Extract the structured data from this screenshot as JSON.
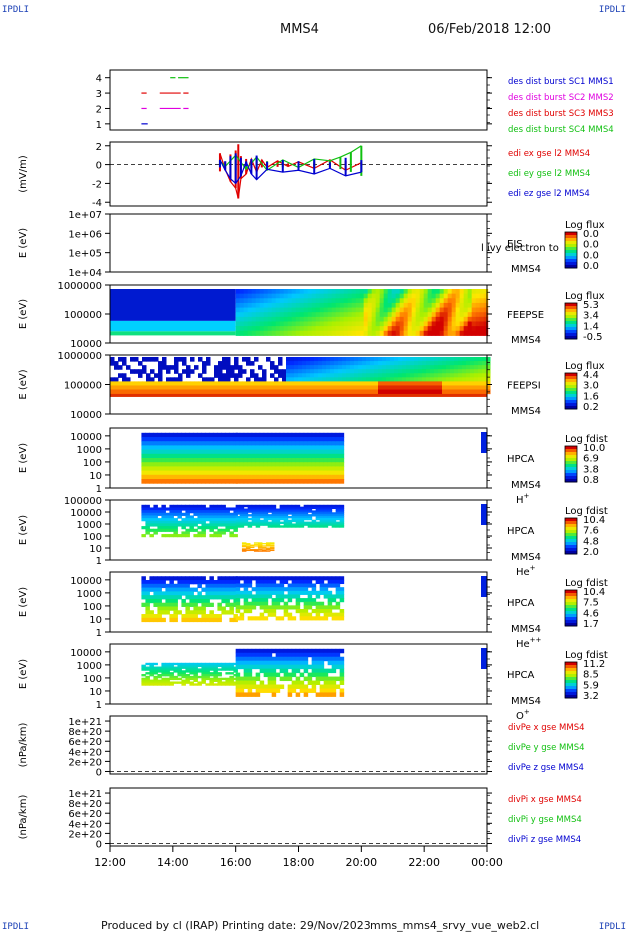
{
  "corner_labels": {
    "top_left": "IPDLI",
    "top_right": "IPDLI",
    "bottom_left": "IPDLI",
    "bottom_right": "IPDLI"
  },
  "header": {
    "spacecraft": "MMS4",
    "datetime": "06/Feb/2018 12:00"
  },
  "footer": {
    "produced_by": "Produced by cl (IRAP)",
    "printing_date": "Printing date: 29/Nov/2023",
    "script": "mms_mms4_srvy_vue_web2.cl"
  },
  "colors": {
    "red": "#e00000",
    "green": "#10c010",
    "blue": "#0000d0",
    "magenta": "#e000e0",
    "axis": "#000000"
  },
  "chart_data": {
    "x_axis": {
      "type": "time",
      "ticks": [
        "12:00",
        "14:00",
        "16:00",
        "18:00",
        "20:00",
        "22:00",
        "00:00"
      ],
      "range": [
        "2018-02-06 12:00",
        "2018-02-07 00:00"
      ]
    },
    "panels": [
      {
        "id": "burst",
        "type": "line",
        "yticks": [
          "1",
          "2",
          "3",
          "4"
        ],
        "ylim": [
          0.6,
          4.5
        ],
        "legend": [
          {
            "label": "des dist burst SC1 MMS1",
            "color": "blue"
          },
          {
            "label": "des dist burst SC2 MMS2",
            "color": "magenta"
          },
          {
            "label": "des dist burst SC3 MMS3",
            "color": "red"
          },
          {
            "label": "des dist burst SC4 MMS4",
            "color": "green"
          }
        ],
        "series": [
          {
            "name": "des dist burst SC1 MMS1",
            "color": "blue",
            "y": 1,
            "intervals": [
              [
                "13:00",
                "13:12"
              ]
            ]
          },
          {
            "name": "des dist burst SC2 MMS2",
            "color": "magenta",
            "y": 2,
            "intervals": [
              [
                "13:00",
                "13:10"
              ],
              [
                "13:35",
                "14:15"
              ],
              [
                "14:20",
                "14:30"
              ]
            ]
          },
          {
            "name": "des dist burst SC3 MMS3",
            "color": "red",
            "y": 3,
            "intervals": [
              [
                "13:00",
                "13:10"
              ],
              [
                "13:35",
                "14:15"
              ],
              [
                "14:20",
                "14:30"
              ]
            ]
          },
          {
            "name": "des dist burst SC4 MMS4",
            "color": "green",
            "y": 4,
            "intervals": [
              [
                "13:55",
                "14:05"
              ],
              [
                "14:10",
                "14:30"
              ]
            ]
          }
        ]
      },
      {
        "id": "edi",
        "type": "line",
        "ylabel": "(mV/m)",
        "yticks": [
          "-4",
          "-2",
          "0",
          "2"
        ],
        "ylim": [
          -4.4,
          2.4
        ],
        "legend": [
          {
            "label": "edi ex gse l2 MMS4",
            "color": "red"
          },
          {
            "label": "edi ey gse l2 MMS4",
            "color": "green"
          },
          {
            "label": "edi ez gse l2 MMS4",
            "color": "blue"
          }
        ],
        "data_range": [
          "15:20",
          "20:05"
        ],
        "series": [
          {
            "name": "edi ex gse l2 MMS4",
            "color": "red",
            "x": [
              "15:30",
              "15:40",
              "15:50",
              "16:00",
              "16:05",
              "16:10",
              "16:20",
              "16:30",
              "16:40",
              "16:50",
              "17:00",
              "17:20",
              "17:40",
              "18:00",
              "18:30",
              "19:00",
              "19:30",
              "20:00"
            ],
            "y": [
              1.2,
              -0.5,
              -1.8,
              -2.5,
              -3.6,
              -1.5,
              -1.0,
              0.6,
              -0.8,
              0.5,
              -0.3,
              0.4,
              -0.2,
              0.3,
              -0.4,
              0.5,
              -0.6,
              0.2
            ]
          },
          {
            "name": "edi ey gse l2 MMS4",
            "color": "green",
            "x": [
              "15:30",
              "15:40",
              "16:00",
              "16:20",
              "16:40",
              "17:00",
              "17:30",
              "18:00",
              "18:30",
              "19:00",
              "19:20",
              "19:40",
              "20:00"
            ],
            "y": [
              0.4,
              -0.2,
              1.0,
              -0.5,
              0.8,
              -0.6,
              0.5,
              -0.3,
              0.6,
              0.4,
              0.8,
              1.3,
              2.0
            ]
          },
          {
            "name": "edi ez gse l2 MMS4",
            "color": "blue",
            "x": [
              "15:30",
              "15:40",
              "15:50",
              "16:00",
              "16:10",
              "16:20",
              "16:30",
              "16:40",
              "17:00",
              "17:30",
              "18:00",
              "18:30",
              "19:00",
              "19:30",
              "20:00"
            ],
            "y": [
              0.5,
              -0.6,
              -1.5,
              -2.0,
              -1.2,
              0.3,
              -1.0,
              -1.6,
              -0.5,
              -0.8,
              -0.6,
              -1.0,
              -0.4,
              -1.2,
              -0.8
            ]
          }
        ]
      },
      {
        "id": "eis",
        "type": "heatmap",
        "ylabel": "E (eV)",
        "yscale": "log",
        "yticks": [
          "1e+04",
          "1e+05",
          "1e+06",
          "1e+07"
        ],
        "ylim": [
          10000,
          10000000
        ],
        "labels": [
          "EIS",
          "MMS4"
        ],
        "overlay_text": "l ivy electron to",
        "colorbar": {
          "title": "Log flux",
          "ticks": [
            "0.0",
            "0.0",
            "0.0",
            "0.0"
          ]
        }
      },
      {
        "id": "feepse",
        "type": "heatmap",
        "ylabel": "E (eV)",
        "yscale": "log",
        "yticks": [
          "10000",
          "100000",
          "1000000"
        ],
        "ylim": [
          10000,
          1000000
        ],
        "labels": [
          "FEEPSE",
          "MMS4"
        ],
        "colorbar": {
          "title": "Log flux",
          "ticks": [
            "5.3",
            "3.4",
            "1.4",
            "-0.5"
          ]
        }
      },
      {
        "id": "feepsi",
        "type": "heatmap",
        "ylabel": "E (eV)",
        "yscale": "log",
        "yticks": [
          "10000",
          "100000",
          "1000000"
        ],
        "ylim": [
          10000,
          1000000
        ],
        "labels": [
          "FEEPSI",
          "MMS4"
        ],
        "colorbar": {
          "title": "Log flux",
          "ticks": [
            "4.4",
            "3.0",
            "1.6",
            "0.2"
          ]
        }
      },
      {
        "id": "hpca-h",
        "type": "heatmap",
        "ylabel": "E (eV)",
        "yscale": "log",
        "yticks": [
          "1",
          "10",
          "100",
          "1000",
          "10000"
        ],
        "ylim": [
          1,
          40000
        ],
        "labels": [
          "HPCA",
          "MMS4"
        ],
        "species": {
          "base": "H",
          "sup": "+"
        },
        "colorbar": {
          "title": "Log fdist",
          "ticks": [
            "10.0",
            "6.9",
            "3.8",
            "0.8"
          ]
        }
      },
      {
        "id": "hpca-he",
        "type": "heatmap",
        "ylabel": "E (eV)",
        "yscale": "log",
        "yticks": [
          "1",
          "10",
          "100",
          "1000",
          "10000",
          "100000"
        ],
        "ylim": [
          1,
          100000
        ],
        "labels": [
          "HPCA",
          "MMS4"
        ],
        "species": {
          "base": "He",
          "sup": "+"
        },
        "colorbar": {
          "title": "Log fdist",
          "ticks": [
            "10.4",
            "7.6",
            "4.8",
            "2.0"
          ]
        }
      },
      {
        "id": "hpca-he2",
        "type": "heatmap",
        "ylabel": "E (eV)",
        "yscale": "log",
        "yticks": [
          "1",
          "10",
          "100",
          "1000",
          "10000"
        ],
        "ylim": [
          1,
          40000
        ],
        "labels": [
          "HPCA",
          "MMS4"
        ],
        "species": {
          "base": "He",
          "sup": "++"
        },
        "colorbar": {
          "title": "Log fdist",
          "ticks": [
            "10.4",
            "7.5",
            "4.6",
            "1.7"
          ]
        }
      },
      {
        "id": "hpca-o",
        "type": "heatmap",
        "ylabel": "E (eV)",
        "yscale": "log",
        "yticks": [
          "1",
          "10",
          "100",
          "1000",
          "10000"
        ],
        "ylim": [
          1,
          40000
        ],
        "labels": [
          "HPCA",
          "MMS4"
        ],
        "species": {
          "base": "O",
          "sup": "+"
        },
        "colorbar": {
          "title": "Log fdist",
          "ticks": [
            "11.2",
            "8.5",
            "5.9",
            "3.2"
          ]
        }
      },
      {
        "id": "divpe",
        "type": "line",
        "ylabel": "(nPa/km)",
        "yticks": [
          "0",
          "2e+20",
          "4e+20",
          "6e+20",
          "8e+20",
          "1e+21"
        ],
        "ylim": [
          -5e+19,
          1.1e+21
        ],
        "zero_line": true,
        "legend": [
          {
            "label": "divPe x gse MMS4",
            "color": "red"
          },
          {
            "label": "divPe y gse MMS4",
            "color": "green"
          },
          {
            "label": "divPe z gse MMS4",
            "color": "blue"
          }
        ]
      },
      {
        "id": "divpi",
        "type": "line",
        "ylabel": "(nPa/km)",
        "yticks": [
          "0",
          "2e+20",
          "4e+20",
          "6e+20",
          "8e+20",
          "1e+21"
        ],
        "ylim": [
          -5e+19,
          1.1e+21
        ],
        "zero_line": true,
        "legend": [
          {
            "label": "divPi x gse MMS4",
            "color": "red"
          },
          {
            "label": "divPi y gse MMS4",
            "color": "green"
          },
          {
            "label": "divPi z gse MMS4",
            "color": "blue"
          }
        ]
      }
    ]
  }
}
